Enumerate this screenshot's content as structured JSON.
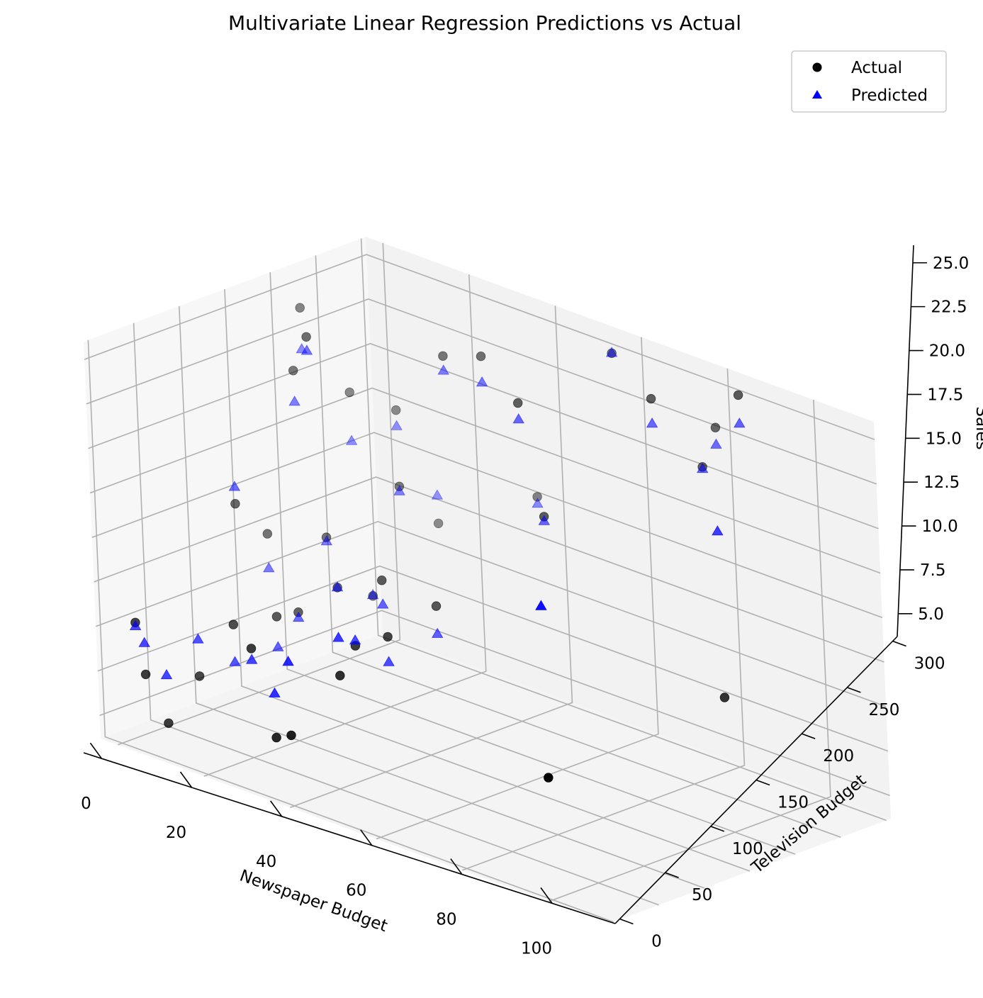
{
  "chart_data": {
    "type": "scatter",
    "title": "Multivariate Linear Regression Predictions vs Actual",
    "xlabel": "Newspaper Budget",
    "ylabel": "Television Budget",
    "zlabel": "Sales",
    "xlim": [
      -4,
      114
    ],
    "ylim": [
      -5,
      305
    ],
    "zlim": [
      3.7,
      26
    ],
    "xticks": [
      "0",
      "20",
      "40",
      "60",
      "80",
      "100"
    ],
    "yticks": [
      "0",
      "50",
      "100",
      "150",
      "200",
      "250",
      "300"
    ],
    "zticks": [
      "5.0",
      "7.5",
      "10.0",
      "12.5",
      "15.0",
      "17.5",
      "20.0",
      "22.5",
      "25.0"
    ],
    "grid": true,
    "legend": "top-right",
    "colors": {
      "actual": "#000000",
      "predicted": "#0000ff"
    },
    "series": [
      {
        "name": "Actual",
        "marker": "circle",
        "points": [
          {
            "x": 96.7,
            "y": 15.8,
            "z": 9.98
          },
          {
            "x": 39.7,
            "y": 1.0,
            "z": 7.62
          },
          {
            "x": 40.9,
            "y": 51.0,
            "z": 10.13
          },
          {
            "x": 99.6,
            "y": 196.8,
            "z": 11.3
          },
          {
            "x": 8.7,
            "y": 11.0,
            "z": 5.38
          },
          {
            "x": 34.4,
            "y": 9.2,
            "z": 6.87
          },
          {
            "x": 5.1,
            "y": 5.0,
            "z": 7.92
          },
          {
            "x": 9.2,
            "y": 44.4,
            "z": 7.43
          },
          {
            "x": 1.4,
            "y": 13.1,
            "z": 10.35
          },
          {
            "x": 12.5,
            "y": 68.2,
            "z": 10.17
          },
          {
            "x": 22.5,
            "y": 40.6,
            "z": 10.23
          },
          {
            "x": 13.6,
            "y": 110.4,
            "z": 9.91
          },
          {
            "x": 37.4,
            "y": 85.0,
            "z": 10.85
          },
          {
            "x": 14.4,
            "y": 130.3,
            "z": 9.85
          },
          {
            "x": 19.1,
            "y": 190.2,
            "z": 10.04
          },
          {
            "x": 40.2,
            "y": 107.6,
            "z": 11.17
          },
          {
            "x": 19.6,
            "y": 149.9,
            "z": 11.32
          },
          {
            "x": 40.2,
            "y": 161.5,
            "z": 11.87
          },
          {
            "x": 2.8,
            "y": 120.3,
            "z": 15.11
          },
          {
            "x": 1.9,
            "y": 157.8,
            "z": 12.63
          },
          {
            "x": 29.6,
            "y": 152.4,
            "z": 12.56
          },
          {
            "x": 11.6,
            "y": 177.0,
            "z": 12.92
          },
          {
            "x": 20.3,
            "y": 218.3,
            "z": 15.76
          },
          {
            "x": 55.2,
            "y": 213.4,
            "z": 17.23
          },
          {
            "x": 78.4,
            "y": 280.7,
            "z": 20.79
          },
          {
            "x": 13.4,
            "y": 249.9,
            "z": 18.84
          },
          {
            "x": 5.7,
            "y": 175.9,
            "z": 21.79
          },
          {
            "x": 50.8,
            "y": 210.6,
            "z": 23.28
          },
          {
            "x": 71.2,
            "y": 261.3,
            "z": 24.35
          },
          {
            "x": 87.0,
            "y": 283.3,
            "z": 25.53
          },
          {
            "x": 1.9,
            "y": 203.5,
            "z": 24.46
          },
          {
            "x": 29.0,
            "y": 231.6,
            "z": 23.6
          },
          {
            "x": 37.6,
            "y": 233.3,
            "z": 24.31
          },
          {
            "x": 12.8,
            "y": 159.0,
            "z": 24.63
          },
          {
            "x": 78.8,
            "y": 294.7,
            "z": 22.77
          },
          {
            "x": 18.0,
            "y": 269.5,
            "z": 12.51
          },
          {
            "x": 38.1,
            "y": 285.5,
            "z": 15.47
          },
          {
            "x": 7.3,
            "y": 228.5,
            "z": 19.71
          },
          {
            "x": 58.2,
            "y": 280.5,
            "z": 25.4
          }
        ]
      },
      {
        "name": "Predicted",
        "marker": "triangle",
        "points": [
          {
            "x": 96.7,
            "y": 15.8,
            "z": 19.63
          },
          {
            "x": 39.7,
            "y": 1.0,
            "z": 11.76
          },
          {
            "x": 40.9,
            "y": 51.0,
            "z": 12.26
          },
          {
            "x": 99.6,
            "y": 196.8,
            "z": 20.64
          },
          {
            "x": 8.7,
            "y": 11.0,
            "z": 8.09
          },
          {
            "x": 34.4,
            "y": 9.2,
            "z": 9.36
          },
          {
            "x": 5.1,
            "y": 5.0,
            "z": 9.69
          },
          {
            "x": 9.2,
            "y": 44.4,
            "z": 9.51
          },
          {
            "x": 1.4,
            "y": 13.1,
            "z": 10.16
          },
          {
            "x": 12.5,
            "y": 68.2,
            "z": 8.07
          },
          {
            "x": 22.5,
            "y": 40.6,
            "z": 9.6
          },
          {
            "x": 13.6,
            "y": 110.4,
            "z": 8.2
          },
          {
            "x": 37.4,
            "y": 85.0,
            "z": 11.16
          },
          {
            "x": 14.4,
            "y": 130.3,
            "z": 9.55
          },
          {
            "x": 19.1,
            "y": 190.2,
            "z": 10.1
          },
          {
            "x": 40.2,
            "y": 107.6,
            "z": 9.76
          },
          {
            "x": 19.6,
            "y": 149.9,
            "z": 11.34
          },
          {
            "x": 40.2,
            "y": 161.5,
            "z": 10.32
          },
          {
            "x": 2.8,
            "y": 120.3,
            "z": 16.07
          },
          {
            "x": 1.9,
            "y": 157.8,
            "z": 10.71
          },
          {
            "x": 29.6,
            "y": 152.4,
            "z": 11.21
          },
          {
            "x": 11.6,
            "y": 177.0,
            "z": 12.71
          },
          {
            "x": 20.3,
            "y": 218.3,
            "z": 15.5
          },
          {
            "x": 55.2,
            "y": 213.4,
            "z": 16.99
          },
          {
            "x": 78.4,
            "y": 280.7,
            "z": 20.69
          },
          {
            "x": 13.4,
            "y": 249.9,
            "z": 17.95
          },
          {
            "x": 5.7,
            "y": 175.9,
            "z": 20.05
          },
          {
            "x": 50.8,
            "y": 210.6,
            "z": 22.37
          },
          {
            "x": 71.2,
            "y": 261.3,
            "z": 22.97
          },
          {
            "x": 87.0,
            "y": 283.3,
            "z": 23.94
          },
          {
            "x": 1.9,
            "y": 203.5,
            "z": 22.14
          },
          {
            "x": 29.0,
            "y": 231.6,
            "z": 22.79
          },
          {
            "x": 37.6,
            "y": 233.3,
            "z": 22.85
          },
          {
            "x": 12.8,
            "y": 159.0,
            "z": 23.86
          },
          {
            "x": 78.8,
            "y": 294.7,
            "z": 21.82
          },
          {
            "x": 18.0,
            "y": 269.5,
            "z": 14.09
          },
          {
            "x": 38.1,
            "y": 285.5,
            "z": 15.09
          },
          {
            "x": 7.3,
            "y": 228.5,
            "z": 16.99
          },
          {
            "x": 58.2,
            "y": 280.5,
            "z": 25.43
          }
        ]
      }
    ]
  }
}
